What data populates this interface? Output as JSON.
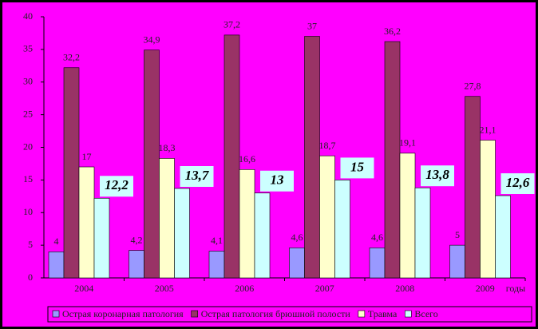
{
  "chart_data": {
    "type": "bar",
    "categories": [
      "2004",
      "2005",
      "2006",
      "2007",
      "2008",
      "2009"
    ],
    "x_label": "годы",
    "series": [
      {
        "name": "Острая коронарная патология",
        "color": "#9999ff",
        "values": [
          4,
          4.2,
          4.1,
          4.6,
          4.6,
          5
        ],
        "value_labels": [
          "4",
          "4,2",
          "4,1",
          "4,6",
          "4,6",
          "5"
        ]
      },
      {
        "name": "Острая патология брюшной полости",
        "color": "#993366",
        "values": [
          32.2,
          34.9,
          37.2,
          37,
          36.2,
          27.8
        ],
        "value_labels": [
          "32,2",
          "34,9",
          "37,2",
          "37",
          "36,2",
          "27,8"
        ]
      },
      {
        "name": "Травма",
        "color": "#ffffcc",
        "values": [
          17,
          18.3,
          16.6,
          18.7,
          19.1,
          21.1
        ],
        "value_labels": [
          "17",
          "18,3",
          "16,6",
          "18,7",
          "19,1",
          "21,1"
        ]
      },
      {
        "name": "Всего",
        "color": "#ccffff",
        "values": [
          12.2,
          13.7,
          13,
          15,
          13.8,
          12.6
        ],
        "value_labels": [
          "12,2",
          "13,7",
          "13",
          "15",
          "13,8",
          "12,6"
        ]
      }
    ],
    "ylim": [
      0,
      40
    ],
    "yticks": [
      0,
      5,
      10,
      15,
      20,
      25,
      30,
      35,
      40
    ]
  }
}
